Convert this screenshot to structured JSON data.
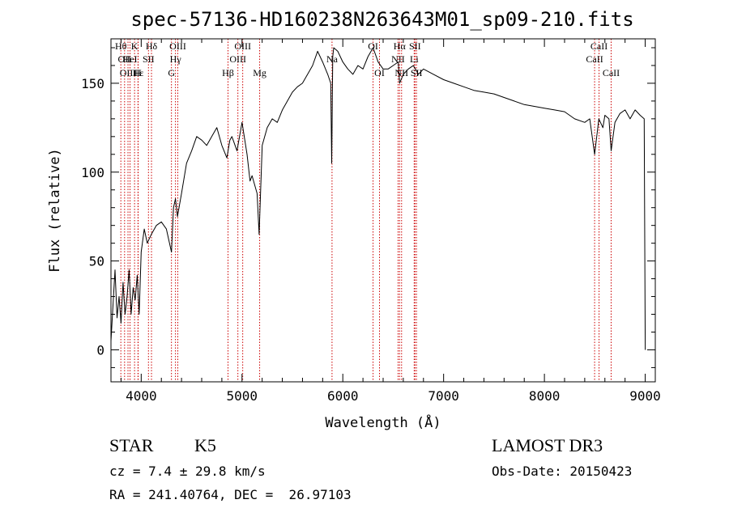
{
  "chart_data": {
    "type": "line",
    "title": "spec-57136-HD160238N263643M01_sp09-210.fits",
    "xlabel": "Wavelength (Å)",
    "ylabel": "Flux (relative)",
    "xlim": [
      3700,
      9100
    ],
    "ylim": [
      -18,
      175
    ],
    "xticks": [
      4000,
      5000,
      6000,
      7000,
      8000,
      9000
    ],
    "yticks": [
      0,
      50,
      100,
      150
    ],
    "grid": false,
    "line_color": "#000000",
    "marker_color": "#cc0000",
    "series": [
      {
        "x": [
          3700,
          3720,
          3740,
          3760,
          3780,
          3800,
          3820,
          3840,
          3860,
          3880,
          3900,
          3920,
          3940,
          3960,
          3980,
          4000,
          4030,
          4060,
          4100,
          4150,
          4200,
          4250,
          4300,
          4320,
          4340,
          4360,
          4400,
          4450,
          4500,
          4550,
          4600,
          4650,
          4700,
          4750,
          4800,
          4850,
          4880,
          4900,
          4950,
          5000,
          5050,
          5080,
          5100,
          5150,
          5170,
          5200,
          5250,
          5300,
          5350,
          5400,
          5450,
          5500,
          5550,
          5600,
          5650,
          5700,
          5750,
          5800,
          5850,
          5880,
          5890,
          5900,
          5910,
          5950,
          6000,
          6050,
          6100,
          6150,
          6200,
          6250,
          6280,
          6300,
          6350,
          6400,
          6450,
          6500,
          6550,
          6563,
          6600,
          6650,
          6700,
          6750,
          6800,
          6900,
          7000,
          7100,
          7200,
          7300,
          7400,
          7500,
          7600,
          7700,
          7800,
          7900,
          8000,
          8100,
          8200,
          8300,
          8400,
          8450,
          8498,
          8540,
          8580,
          8600,
          8640,
          8662,
          8700,
          8750,
          8800,
          8850,
          8900,
          8950,
          8990,
          9000
        ],
        "values": [
          5,
          25,
          45,
          18,
          30,
          15,
          38,
          20,
          30,
          45,
          20,
          35,
          28,
          42,
          20,
          55,
          68,
          60,
          65,
          70,
          72,
          68,
          55,
          80,
          85,
          75,
          88,
          105,
          112,
          120,
          118,
          115,
          120,
          125,
          115,
          108,
          118,
          120,
          112,
          128,
          110,
          95,
          98,
          88,
          65,
          115,
          125,
          130,
          128,
          135,
          140,
          145,
          148,
          150,
          155,
          160,
          168,
          162,
          155,
          150,
          105,
          165,
          170,
          168,
          162,
          158,
          155,
          160,
          158,
          165,
          168,
          170,
          162,
          158,
          158,
          160,
          162,
          150,
          155,
          158,
          160,
          155,
          158,
          155,
          152,
          150,
          148,
          146,
          145,
          144,
          142,
          140,
          138,
          137,
          136,
          135,
          134,
          130,
          128,
          130,
          110,
          130,
          125,
          132,
          130,
          112,
          128,
          133,
          135,
          130,
          135,
          132,
          130,
          0
        ]
      }
    ],
    "line_markers": [
      {
        "x": 3798,
        "label": "Hθ",
        "row": 1
      },
      {
        "x": 3835,
        "label": "OII",
        "row": 2
      },
      {
        "x": 3869,
        "label": "OIII",
        "row": 3
      },
      {
        "x": 3889,
        "label": "HeI",
        "row": 2
      },
      {
        "x": 3934,
        "label": "K",
        "row": 1
      },
      {
        "x": 3970,
        "label": "Hε",
        "row": 3
      },
      {
        "x": 3968,
        "label": "H",
        "row": 3
      },
      {
        "x": 4072,
        "label": "SII",
        "row": 2
      },
      {
        "x": 4102,
        "label": "Hδ",
        "row": 1
      },
      {
        "x": 4300,
        "label": "G",
        "row": 3
      },
      {
        "x": 4340,
        "label": "Hγ",
        "row": 2
      },
      {
        "x": 4363,
        "label": "OIII",
        "row": 1
      },
      {
        "x": 4861,
        "label": "Hβ",
        "row": 3
      },
      {
        "x": 4959,
        "label": "OIII",
        "row": 2
      },
      {
        "x": 5007,
        "label": "OIII",
        "row": 1
      },
      {
        "x": 5175,
        "label": "Mg",
        "row": 3
      },
      {
        "x": 5893,
        "label": "Na",
        "row": 2
      },
      {
        "x": 6300,
        "label": "OI",
        "row": 1
      },
      {
        "x": 6364,
        "label": "OI",
        "row": 3
      },
      {
        "x": 6548,
        "label": "NII",
        "row": 2
      },
      {
        "x": 6563,
        "label": "Hα",
        "row": 1
      },
      {
        "x": 6583,
        "label": "NII",
        "row": 3
      },
      {
        "x": 6708,
        "label": "Li",
        "row": 2
      },
      {
        "x": 6716,
        "label": "SII",
        "row": 1
      },
      {
        "x": 6731,
        "label": "SII",
        "row": 3
      },
      {
        "x": 8498,
        "label": "CaII",
        "row": 2
      },
      {
        "x": 8542,
        "label": "CaII",
        "row": 1
      },
      {
        "x": 8662,
        "label": "CaII",
        "row": 3
      }
    ]
  },
  "info": {
    "object_class": "STAR",
    "subclass": "K5",
    "redshift": "cz = 7.4 ± 29.8 km/s",
    "coords": "RA = 241.40764, DEC =  26.97103",
    "survey": "LAMOST DR3",
    "obs_date": "Obs-Date: 20150423"
  }
}
